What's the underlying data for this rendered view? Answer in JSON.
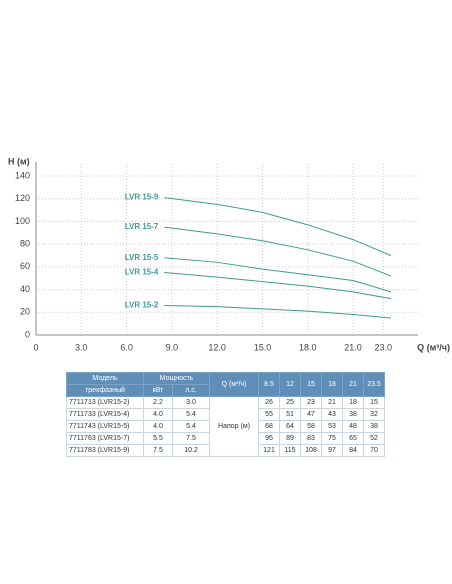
{
  "chart_data": {
    "type": "line",
    "y_label": "H (м)",
    "x_label": "Q (м³/ч)",
    "xlim": [
      0,
      25.3
    ],
    "ylim": [
      0,
      140
    ],
    "xticks": [
      0,
      {
        "value": 3,
        "label": "3.0"
      },
      {
        "value": 6,
        "label": "6.0"
      },
      {
        "value": 9,
        "label": "9.0"
      },
      {
        "value": 12,
        "label": "12.0"
      },
      {
        "value": 15,
        "label": "15.0"
      },
      {
        "value": 18,
        "label": "18.0"
      },
      {
        "value": 21,
        "label": "21.0"
      },
      {
        "value": 23,
        "label": "23.0"
      }
    ],
    "yticks": [
      0,
      20,
      40,
      60,
      80,
      100,
      120,
      140
    ],
    "grid": true,
    "x": [
      8.5,
      12,
      15,
      18,
      21,
      23.5
    ],
    "series": [
      {
        "name": "LVR 15-2",
        "color": "#3f9a94",
        "values": [
          26,
          25,
          23,
          21,
          18,
          15
        ]
      },
      {
        "name": "LVR 15-4",
        "color": "#3f9a94",
        "values": [
          55,
          51,
          47,
          43,
          38,
          32
        ]
      },
      {
        "name": "LVR 15-5",
        "color": "#3f9a94",
        "values": [
          68,
          64,
          58,
          53,
          48,
          38
        ]
      },
      {
        "name": "LVR 15-7",
        "color": "#3f9a94",
        "values": [
          95,
          89,
          83,
          75,
          65,
          52
        ]
      },
      {
        "name": "LVR 15-9",
        "color": "#3f9a94",
        "values": [
          121,
          115,
          108,
          97,
          84,
          70
        ]
      }
    ]
  },
  "table": {
    "model": "Модель",
    "model_sub": "трехфазный",
    "power": "Мощность",
    "kw": "кВт",
    "hp": "л.с.",
    "q": "Q (м³/ч)",
    "head": "Напор (м)",
    "rows": [
      [
        "7711713 (LVR15-2)",
        "2.2",
        "3.0"
      ],
      [
        "7711733 (LVR15-4)",
        "4.0",
        "5.4"
      ],
      [
        "7711743 (LVR15-5)",
        "4.0",
        "5.4"
      ],
      [
        "7711763 (LVR15-7)",
        "5.5",
        "7.5"
      ],
      [
        "7711783 (LVR15-9)",
        "7.5",
        "10.2"
      ]
    ]
  }
}
